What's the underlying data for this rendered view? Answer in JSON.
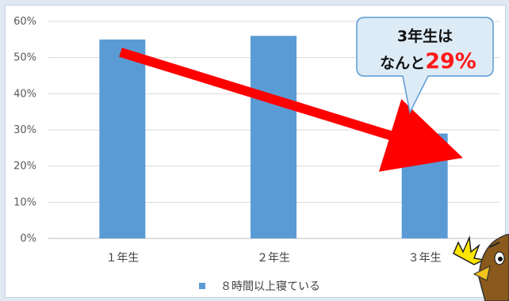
{
  "chart_data": {
    "type": "bar",
    "categories": [
      "１年生",
      "２年生",
      "３年生"
    ],
    "series": [
      {
        "name": "８時間以上寝ている",
        "values": [
          55,
          56,
          29
        ]
      }
    ],
    "y_ticks": [
      "0%",
      "10%",
      "20%",
      "30%",
      "40%",
      "50%",
      "60%"
    ],
    "ylim": [
      0,
      60
    ],
    "grid": true,
    "legend": "bottom",
    "bar_color": "#5b9bd5",
    "arrow_color": "#ff0000",
    "annotation": {
      "line1": "3年生は",
      "line2_prefix": "なんと",
      "line2_value": "29%"
    }
  }
}
